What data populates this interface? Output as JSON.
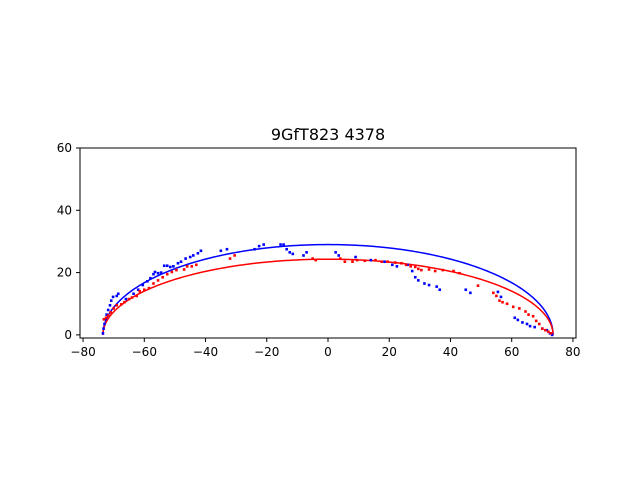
{
  "chart_data": {
    "type": "scatter",
    "title": "9GfT823 4378",
    "xlabel": "",
    "ylabel": "",
    "xlim": [
      -81,
      81
    ],
    "ylim": [
      -1,
      60
    ],
    "xticks": [
      -80,
      -60,
      -40,
      -20,
      0,
      20,
      40,
      60,
      80
    ],
    "yticks": [
      0,
      20,
      40,
      60
    ],
    "grid": false,
    "legend": "none",
    "colors": {
      "blue": "#0000ff",
      "red": "#ff0000"
    },
    "curves": [
      {
        "color": "blue",
        "center_x": 0,
        "half_width": 73.5,
        "peak": 29
      },
      {
        "color": "red",
        "center_x": 0,
        "half_width": 73.5,
        "peak": 24.3
      }
    ],
    "series": [
      {
        "color": "blue",
        "points": [
          [
            -73.5,
            0.5
          ],
          [
            -73.3,
            2
          ],
          [
            -73,
            3.5
          ],
          [
            -72.7,
            5
          ],
          [
            -72.3,
            6.5
          ],
          [
            -71.8,
            8
          ],
          [
            -71.2,
            9.5
          ],
          [
            -70.8,
            11
          ],
          [
            -70.2,
            12.2
          ],
          [
            -69,
            12.5
          ],
          [
            -68.5,
            13.2
          ],
          [
            -66,
            11.5
          ],
          [
            -63.5,
            13.2
          ],
          [
            -62,
            14.5
          ],
          [
            -60.5,
            16
          ],
          [
            -59,
            17.2
          ],
          [
            -58,
            18.2
          ],
          [
            -57,
            19.5
          ],
          [
            -56.5,
            20.2
          ],
          [
            -55.5,
            19.8
          ],
          [
            -54.5,
            20
          ],
          [
            -53.5,
            22.2
          ],
          [
            -52.5,
            22.2
          ],
          [
            -51.5,
            21.8
          ],
          [
            -50.5,
            22
          ],
          [
            -49,
            23
          ],
          [
            -48,
            23.5
          ],
          [
            -46.5,
            24.5
          ],
          [
            -45,
            25
          ],
          [
            -44,
            25.5
          ],
          [
            -42.5,
            26.2
          ],
          [
            -41.5,
            27
          ],
          [
            -35,
            27
          ],
          [
            -33,
            27.5
          ],
          [
            -24,
            27.5
          ],
          [
            -22.5,
            28.5
          ],
          [
            -21,
            29
          ],
          [
            -15.5,
            29
          ],
          [
            -14.5,
            29
          ],
          [
            -13.5,
            27.5
          ],
          [
            -12.5,
            26.5
          ],
          [
            -11.5,
            26
          ],
          [
            -8,
            25.5
          ],
          [
            -7,
            26.5
          ],
          [
            2.5,
            26.5
          ],
          [
            3.5,
            25.5
          ],
          [
            9,
            25
          ],
          [
            14,
            24
          ],
          [
            18.5,
            23.5
          ],
          [
            21,
            22.5
          ],
          [
            22.5,
            22
          ],
          [
            26,
            22.5
          ],
          [
            27.5,
            20.5
          ],
          [
            28.5,
            18.5
          ],
          [
            29.5,
            17.5
          ],
          [
            31.5,
            16.5
          ],
          [
            33,
            16
          ],
          [
            35.5,
            15.5
          ],
          [
            36.5,
            14.5
          ],
          [
            45,
            14.5
          ],
          [
            46.5,
            13.5
          ],
          [
            55.5,
            13.8
          ],
          [
            56.5,
            12.2
          ],
          [
            61,
            5.5
          ],
          [
            62,
            4.8
          ],
          [
            63.5,
            4
          ],
          [
            65,
            3.5
          ],
          [
            66,
            2.8
          ],
          [
            67.5,
            2.5
          ],
          [
            70,
            2
          ],
          [
            71.5,
            1.5
          ],
          [
            72.5,
            0.5
          ],
          [
            73.2,
            0
          ]
        ]
      },
      {
        "color": "red",
        "points": [
          [
            -73.2,
            5
          ],
          [
            -72.5,
            5.5
          ],
          [
            -71.8,
            6.2
          ],
          [
            -71,
            7.2
          ],
          [
            -70,
            8.5
          ],
          [
            -69,
            9.5
          ],
          [
            -67.5,
            9.8
          ],
          [
            -66.5,
            10.5
          ],
          [
            -65,
            11.5
          ],
          [
            -64,
            12
          ],
          [
            -62.5,
            12.5
          ],
          [
            -61.5,
            14
          ],
          [
            -60,
            14.5
          ],
          [
            -58.5,
            15
          ],
          [
            -57,
            16.5
          ],
          [
            -55.5,
            17.5
          ],
          [
            -54,
            18.5
          ],
          [
            -52.5,
            19.5
          ],
          [
            -51,
            20.2
          ],
          [
            -49.5,
            20.8
          ],
          [
            -47,
            21
          ],
          [
            -46,
            22
          ],
          [
            -44.5,
            22
          ],
          [
            -43,
            22.5
          ],
          [
            -32,
            24.5
          ],
          [
            -30.5,
            25.5
          ],
          [
            -5,
            24.5
          ],
          [
            -4,
            24
          ],
          [
            4,
            24.5
          ],
          [
            5.5,
            23.5
          ],
          [
            8,
            23.5
          ],
          [
            9.5,
            24
          ],
          [
            12,
            23.8
          ],
          [
            15.5,
            24
          ],
          [
            17.5,
            23.5
          ],
          [
            19.5,
            23.5
          ],
          [
            22,
            23.2
          ],
          [
            24,
            23
          ],
          [
            25.5,
            22.5
          ],
          [
            27,
            22
          ],
          [
            28.5,
            21.8
          ],
          [
            29.5,
            21.2
          ],
          [
            30.5,
            20.8
          ],
          [
            33,
            21
          ],
          [
            35,
            20.5
          ],
          [
            37.5,
            20.8
          ],
          [
            41,
            20.5
          ],
          [
            43,
            19.8
          ],
          [
            49,
            15.8
          ],
          [
            54,
            13.5
          ],
          [
            55,
            12.5
          ],
          [
            56,
            11
          ],
          [
            57,
            10.5
          ],
          [
            58.5,
            10
          ],
          [
            60.5,
            9
          ],
          [
            62.5,
            8.5
          ],
          [
            64.5,
            7.5
          ],
          [
            65.5,
            6.5
          ],
          [
            67,
            6
          ],
          [
            68,
            4.5
          ],
          [
            69,
            3.5
          ],
          [
            70,
            2
          ],
          [
            71,
            1.5
          ],
          [
            72,
            1
          ],
          [
            72.8,
            0.5
          ]
        ]
      }
    ]
  }
}
